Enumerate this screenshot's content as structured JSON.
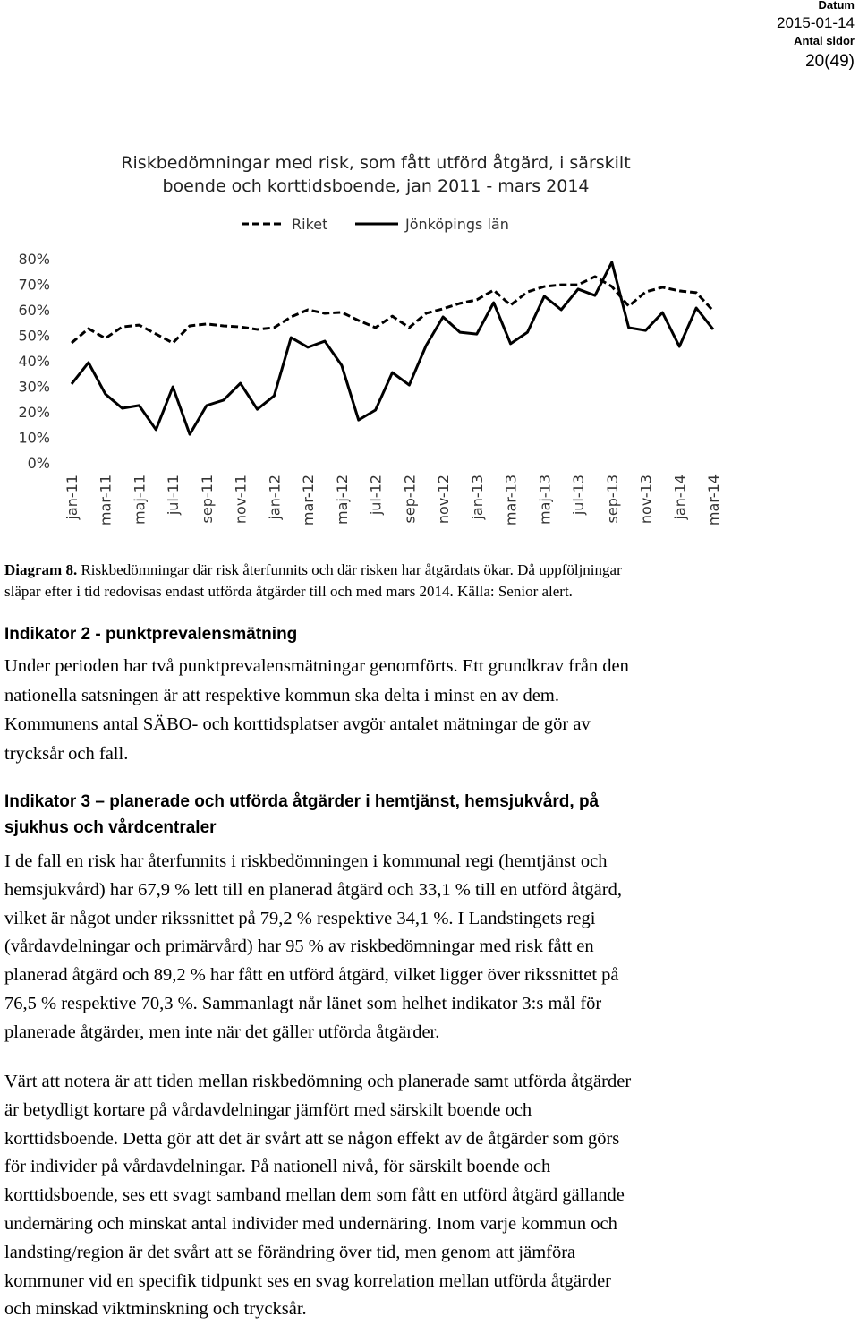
{
  "header": {
    "date_label": "Datum",
    "date": "2015-01-14",
    "pages_label": "Antal sidor",
    "pages": "20(49)"
  },
  "chart_data": {
    "type": "line",
    "title": [
      "Riskbedömningar med risk, som fått utförd åtgärd, i särskilt",
      "boende och korttidsboende, jan 2011 - mars 2014"
    ],
    "categories": [
      "jan-11",
      null,
      "mar-11",
      null,
      "maj-11",
      null,
      "jul-11",
      null,
      "sep-11",
      null,
      "nov-11",
      null,
      "jan-12",
      null,
      "mar-12",
      null,
      "maj-12",
      null,
      "jul-12",
      null,
      "sep-12",
      null,
      "nov-12",
      null,
      "jan-13",
      null,
      "mar-13",
      null,
      "maj-13",
      null,
      "jul-13",
      null,
      "sep-13",
      null,
      "nov-13",
      null,
      "jan-14",
      null,
      "mar-14"
    ],
    "series": [
      {
        "name": "Riket",
        "color": "#000000",
        "dashed": true,
        "values": [
          47,
          52.6,
          48.8,
          53.3,
          54,
          50.5,
          47,
          53.7,
          54.4,
          53.7,
          53.3,
          52.3,
          53,
          57.2,
          60,
          58.6,
          59,
          55.8,
          53,
          57.5,
          53,
          58.6,
          60.4,
          62.5,
          63.9,
          67.7,
          61.8,
          67,
          69.1,
          69.8,
          69.8,
          73,
          69.1,
          61.4,
          67,
          68.8,
          67.4,
          66.7,
          59.6
        ]
      },
      {
        "name": "Jönköpings län",
        "color": "#000000",
        "dashed": false,
        "values": [
          30.9,
          39.3,
          27,
          21.4,
          22.5,
          13,
          29.8,
          11.2,
          22.5,
          24.6,
          31.2,
          21,
          26.3,
          49.1,
          45.3,
          47.7,
          38.2,
          16.8,
          20.7,
          35.4,
          30.5,
          46,
          57.2,
          51.2,
          50.5,
          62.8,
          46.7,
          51.2,
          65.3,
          60,
          68.1,
          65.6,
          78.6,
          53,
          51.9,
          58.9,
          45.6,
          60.7,
          52.3
        ]
      }
    ],
    "ylim": [
      0,
      80
    ],
    "yticks": [
      {
        "value": 0,
        "label": "0%"
      },
      {
        "value": 10,
        "label": "10%"
      },
      {
        "value": 20,
        "label": "20%"
      },
      {
        "value": 30,
        "label": "30%"
      },
      {
        "value": 40,
        "label": "40%"
      },
      {
        "value": 50,
        "label": "50%"
      },
      {
        "value": 60,
        "label": "60%"
      },
      {
        "value": 70,
        "label": "70%"
      },
      {
        "value": 80,
        "label": "80%"
      }
    ],
    "grid": false
  },
  "caption": {
    "label": "Diagram 8.",
    "lines": [
      "Riskbedömningar där risk återfunnits och där risken har åtgärdats ökar. Då uppföljningar",
      "släpar efter i tid redovisas endast utförda åtgärder till och med mars 2014. Källa: Senior alert."
    ]
  },
  "sections": [
    {
      "heading": [
        "Indikator 2 - punktprevalensmätning"
      ],
      "paragraphs": [
        [
          "Under perioden har två punktprevalensmätningar genomförts. Ett grundkrav från den",
          "nationella satsningen är att respektive kommun ska delta i minst en av dem.",
          "Kommunens antal SÄBO- och korttidsplatser avgör antalet mätningar de gör av",
          "trycksår och fall."
        ]
      ]
    },
    {
      "heading": [
        "Indikator 3 – planerade och utförda åtgärder i hemtjänst, hemsjukvård, på",
        "sjukhus och vårdcentraler"
      ],
      "paragraphs": [
        [
          "I de fall en risk har återfunnits i riskbedömningen i kommunal regi (hemtjänst och",
          "hemsjukvård) har 67,9 % lett till en planerad åtgärd och 33,1 % till en utförd åtgärd,",
          "vilket är något under rikssnittet på 79,2 % respektive 34,1 %. I Landstingets regi",
          "(vårdavdelningar och primärvård) har 95 % av riskbedömningar med risk fått en",
          "planerad åtgärd och 89,2 % har fått en utförd åtgärd, vilket ligger över rikssnittet på",
          "76,5 % respektive 70,3 %. Sammanlagt når länet som helhet indikator 3:s mål för",
          "planerade åtgärder, men inte när det gäller utförda åtgärder."
        ],
        [
          "Värt att notera är att tiden mellan riskbedömning och planerade samt utförda åtgärder",
          "är betydligt kortare på vårdavdelningar jämfört med särskilt boende och",
          "korttidsboende. Detta gör att det är svårt att se någon effekt av de åtgärder som görs",
          "för individer på vårdavdelningar. På nationell nivå, för särskilt boende och",
          "korttidsboende, ses ett svagt samband mellan dem som fått en utförd åtgärd gällande",
          "undernäring och minskat antal individer med undernäring. Inom varje kommun och",
          "landsting/region är det svårt att se förändring över tid, men genom att jämföra",
          "kommuner vid en specifik tidpunkt ses en svag korrelation mellan utförda åtgärder",
          "och minskad viktminskning och trycksår."
        ]
      ]
    }
  ]
}
